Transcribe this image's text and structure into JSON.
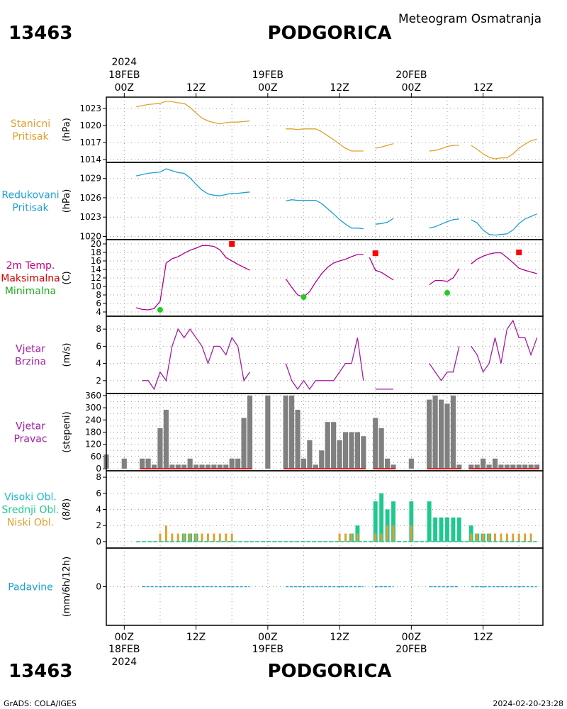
{
  "header": {
    "station_id": "13463",
    "station_name": "PODGORICA",
    "product": "Meteogram Osmatranja"
  },
  "footer": {
    "station_id": "13463",
    "station_name": "PODGORICA",
    "credit": "GrADS: COLA/IGES",
    "timestamp": "2024-02-20-23:28"
  },
  "colors": {
    "pressure": "#e0a030",
    "reduced": "#1e9fd0",
    "temp_label": "#c8007a",
    "temp_line": "#b00090",
    "tmax": "#ff0000",
    "tmin": "#22cc22",
    "wind": "#a020a0",
    "bars": "#808080",
    "bar_baseline": "#dd2020",
    "high_cloud": "#20b8c8",
    "mid_cloud": "#20c890",
    "low_cloud": "#e0a030",
    "precip": "#1e9fd0"
  },
  "time_axis": {
    "year": "2024",
    "top_ticks": [
      {
        "hour": 0,
        "date": "18FEB",
        "label": "00Z"
      },
      {
        "hour": 12,
        "date": "",
        "label": "12Z"
      },
      {
        "hour": 24,
        "date": "19FEB",
        "label": "00Z"
      },
      {
        "hour": 36,
        "date": "",
        "label": "12Z"
      },
      {
        "hour": 48,
        "date": "20FEB",
        "label": "00Z"
      },
      {
        "hour": 60,
        "date": "",
        "label": "12Z"
      }
    ],
    "range_hours": [
      -3,
      70
    ]
  },
  "panels": [
    {
      "key": "station_pressure",
      "labels": [
        "Stanicni",
        "Pritisak"
      ],
      "label_colors": [
        "#e0a030",
        "#e0a030"
      ],
      "unit": "(hPa)",
      "ylim": [
        1013.5,
        1025
      ],
      "yticks": [
        1014,
        1017,
        1020,
        1023
      ]
    },
    {
      "key": "reduced_pressure",
      "labels": [
        "Redukovani",
        "Pritisak"
      ],
      "label_colors": [
        "#1e9fd0",
        "#1e9fd0"
      ],
      "unit": "(hPa)",
      "ylim": [
        1019.5,
        1031.5
      ],
      "yticks": [
        1020,
        1023,
        1026,
        1029
      ]
    },
    {
      "key": "temperature",
      "labels": [
        "2m Temp.",
        "Maksimalna",
        "Minimalna"
      ],
      "label_colors": [
        "#c8007a",
        "#d40000",
        "#22aa22"
      ],
      "unit": "(C)",
      "ylim": [
        3,
        21
      ],
      "yticks": [
        4,
        6,
        8,
        10,
        12,
        14,
        16,
        18,
        20
      ]
    },
    {
      "key": "wind_speed",
      "labels": [
        "Vjetar",
        "Brzina"
      ],
      "label_colors": [
        "#a020a0",
        "#a020a0"
      ],
      "unit": "(m/s)",
      "ylim": [
        0.5,
        9.5
      ],
      "yticks": [
        2,
        4,
        6,
        8
      ]
    },
    {
      "key": "wind_direction",
      "labels": [
        "Vjetar",
        "Pravac"
      ],
      "label_colors": [
        "#a020a0",
        "#a020a0"
      ],
      "unit": "(stepeni)",
      "ylim": [
        -10,
        370
      ],
      "yticks": [
        0,
        60,
        120,
        180,
        240,
        300,
        360
      ],
      "extra_ticks": [
        30,
        90,
        150,
        210,
        270,
        330
      ]
    },
    {
      "key": "clouds",
      "labels": [
        "Visoki Obl.",
        "Srednji Obl.",
        "Niski Obl."
      ],
      "label_colors": [
        "#20b8c8",
        "#20c890",
        "#e0a030"
      ],
      "unit": "(8/8)",
      "ylim": [
        -0.8,
        8.8
      ],
      "yticks": [
        0,
        2,
        4,
        6,
        8
      ]
    },
    {
      "key": "precipitation",
      "labels": [
        "Padavine"
      ],
      "label_colors": [
        "#1e9fd0"
      ],
      "unit": "(mm/6h/12h)",
      "ylim": [
        -5,
        5
      ],
      "yticks": [
        0
      ]
    }
  ],
  "chart_data": [
    {
      "type": "line",
      "title": "Stanicni Pritisak",
      "ylabel": "(hPa)",
      "ylim": [
        1013.5,
        1025
      ],
      "segments": [
        {
          "x": [
            2,
            4,
            6,
            7,
            8,
            9,
            10,
            11,
            12,
            13,
            14,
            15,
            16,
            17,
            18,
            19,
            20,
            21
          ],
          "y": [
            1023.3,
            1023.7,
            1023.9,
            1024.3,
            1024.2,
            1024.0,
            1023.9,
            1023.2,
            1022.2,
            1021.3,
            1020.8,
            1020.5,
            1020.3,
            1020.5,
            1020.6,
            1020.6,
            1020.7,
            1020.8
          ]
        },
        {
          "x": [
            27,
            28,
            29,
            30,
            31,
            32,
            33,
            34,
            35,
            36,
            37,
            38,
            39,
            40
          ],
          "y": [
            1019.4,
            1019.4,
            1019.3,
            1019.4,
            1019.4,
            1019.4,
            1018.9,
            1018.2,
            1017.5,
            1016.7,
            1016.0,
            1015.5,
            1015.5,
            1015.5
          ]
        },
        {
          "x": [
            42,
            43,
            44,
            45
          ],
          "y": [
            1016.0,
            1016.2,
            1016.5,
            1016.8
          ]
        },
        {
          "x": [
            51,
            52,
            53,
            54,
            55,
            56
          ],
          "y": [
            1015.5,
            1015.6,
            1015.9,
            1016.3,
            1016.5,
            1016.5
          ]
        },
        {
          "x": [
            58,
            59,
            60,
            61,
            62,
            63,
            64,
            65,
            66,
            67,
            68,
            69
          ],
          "y": [
            1016.5,
            1015.8,
            1015.0,
            1014.4,
            1014.1,
            1014.3,
            1014.3,
            1015.0,
            1016.0,
            1016.7,
            1017.3,
            1017.6
          ]
        }
      ]
    },
    {
      "type": "line",
      "title": "Redukovani Pritisak",
      "ylabel": "(hPa)",
      "ylim": [
        1019.5,
        1031.5
      ],
      "segments": [
        {
          "x": [
            2,
            4,
            6,
            7,
            8,
            9,
            10,
            11,
            12,
            13,
            14,
            15,
            16,
            17,
            18,
            19,
            20,
            21
          ],
          "y": [
            1029.4,
            1029.8,
            1030.0,
            1030.5,
            1030.2,
            1029.9,
            1029.8,
            1029.1,
            1028.1,
            1027.2,
            1026.6,
            1026.4,
            1026.3,
            1026.5,
            1026.7,
            1026.7,
            1026.8,
            1026.9
          ]
        },
        {
          "x": [
            27,
            28,
            29,
            30,
            31,
            32,
            33,
            34,
            35,
            36,
            37,
            38,
            39,
            40
          ],
          "y": [
            1025.5,
            1025.7,
            1025.6,
            1025.6,
            1025.6,
            1025.6,
            1025.1,
            1024.3,
            1023.5,
            1022.6,
            1021.9,
            1021.3,
            1021.3,
            1021.2
          ]
        },
        {
          "x": [
            42,
            43,
            44,
            45
          ],
          "y": [
            1021.9,
            1022.0,
            1022.2,
            1022.8
          ]
        },
        {
          "x": [
            51,
            52,
            53,
            54,
            55,
            56
          ],
          "y": [
            1021.3,
            1021.5,
            1021.9,
            1022.3,
            1022.6,
            1022.7
          ]
        },
        {
          "x": [
            58,
            59,
            60,
            61,
            62,
            63,
            64,
            65,
            66,
            67,
            68,
            69
          ],
          "y": [
            1022.6,
            1022.1,
            1021.0,
            1020.3,
            1020.2,
            1020.3,
            1020.4,
            1021.0,
            1022.0,
            1022.7,
            1023.1,
            1023.5
          ]
        }
      ]
    },
    {
      "type": "line",
      "title": "2m Temp. Maksimalna Minimalna",
      "ylabel": "(C)",
      "ylim": [
        3,
        21
      ],
      "segments": [
        {
          "x": [
            2,
            3,
            4,
            5,
            6,
            7,
            8,
            9,
            10,
            11,
            12,
            13,
            14,
            15,
            16,
            17,
            18,
            19,
            20,
            21
          ],
          "y": [
            5.0,
            4.6,
            4.5,
            4.8,
            6.5,
            15.5,
            16.5,
            17.0,
            17.8,
            18.5,
            19.0,
            19.6,
            19.6,
            19.4,
            18.6,
            16.8,
            16.0,
            15.2,
            14.5,
            13.8
          ]
        },
        {
          "x": [
            27,
            28,
            29,
            30,
            31,
            32,
            33,
            34,
            35,
            36,
            37,
            38,
            39,
            40
          ],
          "y": [
            11.8,
            9.8,
            8.0,
            7.5,
            8.8,
            11.0,
            13.0,
            14.5,
            15.5,
            16.0,
            16.4,
            17.0,
            17.5,
            17.5
          ]
        },
        {
          "x": [
            41,
            42,
            43,
            44,
            45
          ],
          "y": [
            16.8,
            13.8,
            13.3,
            12.4,
            11.5
          ]
        },
        {
          "x": [
            51,
            52,
            53,
            54,
            55,
            56
          ],
          "y": [
            10.4,
            11.4,
            11.4,
            11.2,
            12.0,
            14.2
          ]
        },
        {
          "x": [
            58,
            59,
            60,
            61,
            62,
            63,
            64,
            65,
            66,
            67,
            68,
            69
          ],
          "y": [
            15.3,
            16.4,
            17.1,
            17.6,
            17.9,
            17.9,
            16.8,
            15.6,
            14.3,
            13.8,
            13.4,
            13.0
          ]
        }
      ],
      "tmax": {
        "x": [
          18,
          42,
          66
        ],
        "y": [
          20.0,
          17.8,
          18.0
        ]
      },
      "tmin": {
        "x": [
          6,
          30,
          54
        ],
        "y": [
          4.5,
          7.5,
          8.5
        ]
      }
    },
    {
      "type": "line",
      "title": "Vjetar Brzina",
      "ylabel": "(m/s)",
      "ylim": [
        0.5,
        9.5
      ],
      "segments": [
        {
          "x": [
            3,
            4,
            5,
            6,
            7,
            8,
            9,
            10,
            11,
            12,
            13,
            14,
            15,
            16,
            17,
            18,
            19,
            20,
            21
          ],
          "y": [
            2,
            2,
            1,
            3,
            2,
            6,
            8,
            7,
            8,
            7,
            6,
            4,
            6,
            6,
            5,
            7,
            6,
            2,
            3
          ]
        },
        {
          "x": [
            27,
            28,
            29,
            30,
            31,
            32,
            33,
            34,
            35,
            36,
            37,
            38,
            39,
            40
          ],
          "y": [
            4,
            2,
            1,
            2,
            1,
            2,
            2,
            2,
            2,
            3,
            4,
            4,
            7,
            2
          ]
        },
        {
          "x": [
            42,
            43,
            44,
            45
          ],
          "y": [
            1,
            1,
            1,
            1
          ]
        },
        {
          "x": [
            51,
            52,
            53,
            54,
            55,
            56
          ],
          "y": [
            4,
            3,
            2,
            3,
            3,
            6
          ]
        },
        {
          "x": [
            58,
            59,
            60,
            61,
            62,
            63,
            64,
            65,
            66,
            67,
            68,
            69
          ],
          "y": [
            6,
            5,
            3,
            4,
            7,
            4,
            8,
            9,
            7,
            7,
            5,
            7
          ]
        }
      ]
    },
    {
      "type": "bar",
      "title": "Vjetar Pravac",
      "ylabel": "(stepeni)",
      "ylim": [
        -10,
        370
      ],
      "x": [
        -3,
        0,
        3,
        4,
        5,
        6,
        7,
        8,
        9,
        10,
        11,
        12,
        13,
        14,
        15,
        16,
        17,
        18,
        19,
        20,
        21,
        24,
        27,
        28,
        29,
        30,
        31,
        32,
        33,
        34,
        35,
        36,
        37,
        38,
        39,
        40,
        42,
        43,
        44,
        45,
        48,
        51,
        52,
        53,
        54,
        55,
        56,
        57,
        58,
        59,
        60,
        61,
        62,
        63,
        64,
        65,
        66,
        67,
        68,
        69
      ],
      "values": [
        70,
        50,
        50,
        50,
        20,
        200,
        290,
        20,
        20,
        20,
        50,
        20,
        20,
        20,
        20,
        20,
        20,
        50,
        50,
        250,
        360,
        360,
        360,
        360,
        290,
        50,
        140,
        20,
        90,
        230,
        230,
        140,
        180,
        180,
        180,
        160,
        250,
        200,
        50,
        20,
        50,
        340,
        360,
        340,
        320,
        360,
        20,
        0,
        20,
        20,
        50,
        20,
        50,
        20,
        20,
        20,
        20,
        20,
        20,
        20
      ]
    },
    {
      "type": "bar",
      "title": "Visoki Obl. Srednji Obl. Niski Obl.",
      "ylabel": "(8/8)",
      "ylim": [
        -0.8,
        8.8
      ],
      "x": [
        6,
        7,
        8,
        9,
        10,
        11,
        12,
        13,
        14,
        15,
        16,
        17,
        18,
        36,
        37,
        38,
        39,
        42,
        43,
        44,
        45,
        48,
        51,
        52,
        53,
        54,
        55,
        56,
        58,
        59,
        60,
        61,
        62,
        63,
        64,
        65,
        66,
        67,
        68
      ],
      "series": [
        {
          "name": "Visoki Obl.",
          "values": [
            0,
            0,
            0,
            0,
            0,
            0,
            0,
            0,
            0,
            0,
            0,
            0,
            0,
            0,
            0,
            0,
            0,
            0,
            0,
            0,
            0,
            0,
            0,
            0,
            0,
            0,
            0,
            0,
            0,
            0,
            0,
            0,
            0,
            0,
            0,
            0,
            0,
            0,
            0
          ]
        },
        {
          "name": "Srednji Obl.",
          "values": [
            0,
            0,
            0,
            0,
            1,
            1,
            1,
            0,
            0,
            0,
            0,
            0,
            0,
            0,
            0,
            1,
            2,
            5,
            6,
            4,
            5,
            5,
            5,
            3,
            3,
            3,
            3,
            3,
            2,
            1,
            1,
            1,
            0,
            0,
            0,
            0,
            0,
            0,
            0
          ]
        },
        {
          "name": "Niski Obl.",
          "values": [
            1,
            2,
            1,
            1,
            1,
            1,
            1,
            1,
            1,
            1,
            1,
            1,
            1,
            1,
            1,
            1,
            1,
            1,
            1,
            2,
            2,
            2,
            0,
            0,
            0,
            0,
            0,
            0,
            1,
            1,
            1,
            1,
            1,
            1,
            1,
            1,
            1,
            1,
            1
          ]
        }
      ]
    },
    {
      "type": "bar",
      "title": "Padavine",
      "ylabel": "(mm/6h/12h)",
      "ylim": [
        -5,
        5
      ],
      "x": [
        6,
        12,
        18,
        30,
        36,
        42,
        54,
        60,
        66
      ],
      "values": [
        0,
        0,
        0,
        0,
        0,
        0,
        0,
        0,
        0
      ]
    }
  ]
}
